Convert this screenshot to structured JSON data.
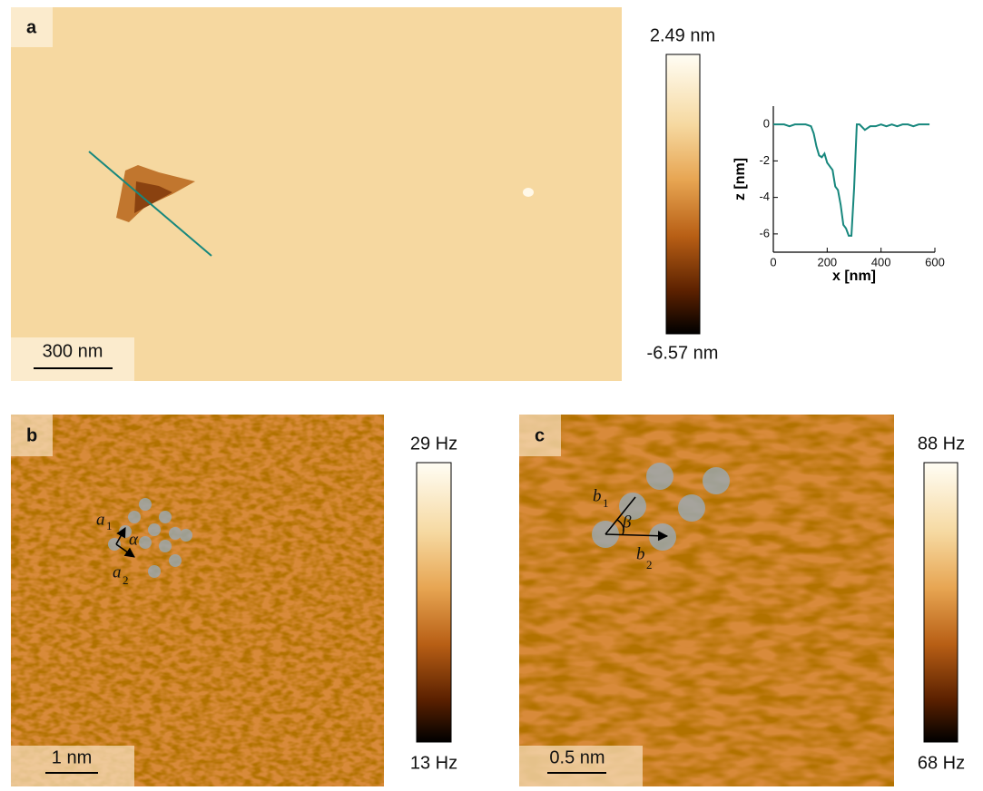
{
  "panels": [
    {
      "label": "a",
      "scale_bar": "300 nm",
      "colorbar": {
        "max": "2.49 nm",
        "min": "-6.57 nm"
      }
    },
    {
      "label": "b",
      "scale_bar": "1 nm",
      "colorbar": {
        "max": "29 Hz",
        "min": "13 Hz"
      },
      "vectors": [
        {
          "symbol": "a",
          "index": "1"
        },
        {
          "symbol": "a",
          "index": "2"
        }
      ],
      "angle": "α"
    },
    {
      "label": "c",
      "scale_bar": "0.5 nm",
      "colorbar": {
        "max": "88 Hz",
        "min": "68 Hz"
      },
      "vectors": [
        {
          "symbol": "b",
          "index": "1"
        },
        {
          "symbol": "b",
          "index": "2"
        }
      ],
      "angle": "β"
    }
  ],
  "chart_data": {
    "type": "line",
    "xlabel": "x [nm]",
    "ylabel": "z [nm]",
    "x": [
      0,
      20,
      40,
      60,
      80,
      100,
      120,
      140,
      150,
      160,
      170,
      180,
      190,
      200,
      210,
      220,
      230,
      240,
      250,
      260,
      270,
      280,
      290,
      300,
      310,
      320,
      340,
      360,
      380,
      400,
      420,
      440,
      460,
      480,
      500,
      520,
      540,
      560,
      580
    ],
    "series": [
      {
        "color": "#17877d",
        "values": [
          0,
          0,
          0,
          -0.1,
          0,
          0,
          0,
          -0.1,
          -0.5,
          -1.2,
          -1.7,
          -1.8,
          -1.6,
          -2.1,
          -2.3,
          -2.5,
          -3.4,
          -3.6,
          -4.4,
          -5.5,
          -5.7,
          -6.1,
          -6.1,
          -3.5,
          0,
          0,
          -0.3,
          -0.1,
          -0.1,
          0,
          -0.1,
          0,
          -0.1,
          0,
          0,
          -0.1,
          0,
          0,
          0
        ]
      }
    ],
    "xlim": [
      0,
      600
    ],
    "ylim": [
      -7,
      1
    ],
    "xticks": [
      0,
      200,
      400,
      600
    ],
    "yticks": [
      0,
      -2,
      -4,
      -6
    ]
  }
}
